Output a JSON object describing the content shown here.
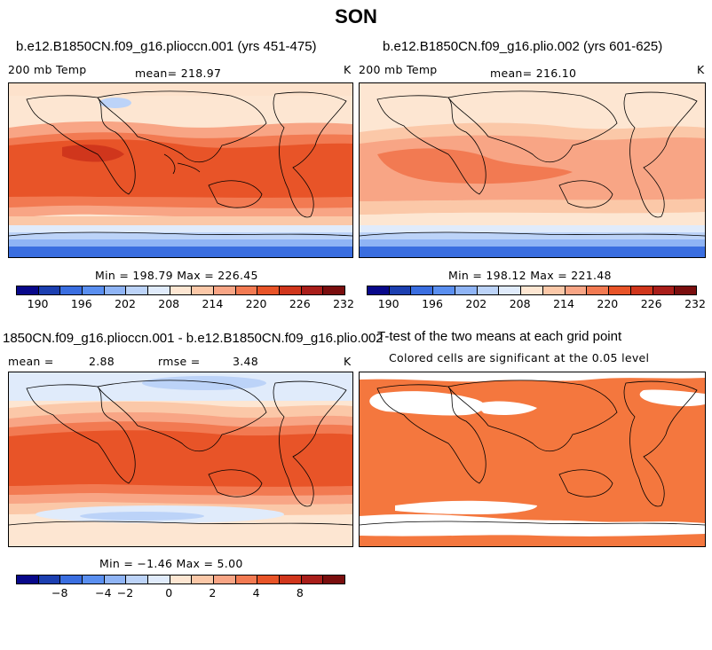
{
  "title": "SON",
  "panels": [
    {
      "title": "b.e12.B1850CN.f09_g16.plioccn.001 (yrs 451-475)",
      "left_label": "200 mb Temp",
      "center_label": "mean= 218.97",
      "right_label": "K",
      "minmax": "Min = 198.79 Max = 226.45",
      "colorbar": {
        "colors": [
          "#08088a",
          "#1c3fb0",
          "#3a6ee0",
          "#5a8ff0",
          "#8fb4f5",
          "#bcd3f8",
          "#e0ebfb",
          "#fde6d2",
          "#fbc8a8",
          "#f8a585",
          "#f27a52",
          "#e85428",
          "#d0361c",
          "#a91e1a",
          "#7a0e0e"
        ],
        "ticks": [
          "190",
          "196",
          "202",
          "208",
          "214",
          "220",
          "226",
          "232"
        ]
      }
    },
    {
      "title": "b.e12.B1850CN.f09_g16.plio.002 (yrs 601-625)",
      "left_label": "200 mb Temp",
      "center_label": "mean= 216.10",
      "right_label": "K",
      "minmax": "Min = 198.12 Max = 221.48",
      "colorbar": {
        "colors": [
          "#08088a",
          "#1c3fb0",
          "#3a6ee0",
          "#5a8ff0",
          "#8fb4f5",
          "#bcd3f8",
          "#e0ebfb",
          "#fde6d2",
          "#fbc8a8",
          "#f8a585",
          "#f27a52",
          "#e85428",
          "#d0361c",
          "#a91e1a",
          "#7a0e0e"
        ],
        "ticks": [
          "190",
          "196",
          "202",
          "208",
          "214",
          "220",
          "226",
          "232"
        ]
      }
    },
    {
      "title": "1850CN.f09_g16.plioccn.001 - b.e12.B1850CN.f09_g16.plio.002",
      "left_label": "mean =",
      "center_label": "2.88",
      "mid_label": "rmse =",
      "mid_value": "3.48",
      "right_label": "K",
      "minmax": "Min = −1.46 Max = 5.00",
      "colorbar": {
        "colors": [
          "#08088a",
          "#1c3fb0",
          "#3a6ee0",
          "#5a8ff0",
          "#8fb4f5",
          "#bcd3f8",
          "#e0ebfb",
          "#fde6d2",
          "#fbc8a8",
          "#f8a585",
          "#f27a52",
          "#e85428",
          "#d0361c",
          "#a91e1a",
          "#7a0e0e"
        ],
        "ticks": [
          "−8",
          "−4",
          "−2",
          "0",
          "2",
          "4",
          "8"
        ]
      }
    },
    {
      "title": "T-test of the two means at each grid point",
      "subtitle": "Colored cells are significant at the 0.05 level",
      "significant_color": "#f4773e"
    }
  ]
}
